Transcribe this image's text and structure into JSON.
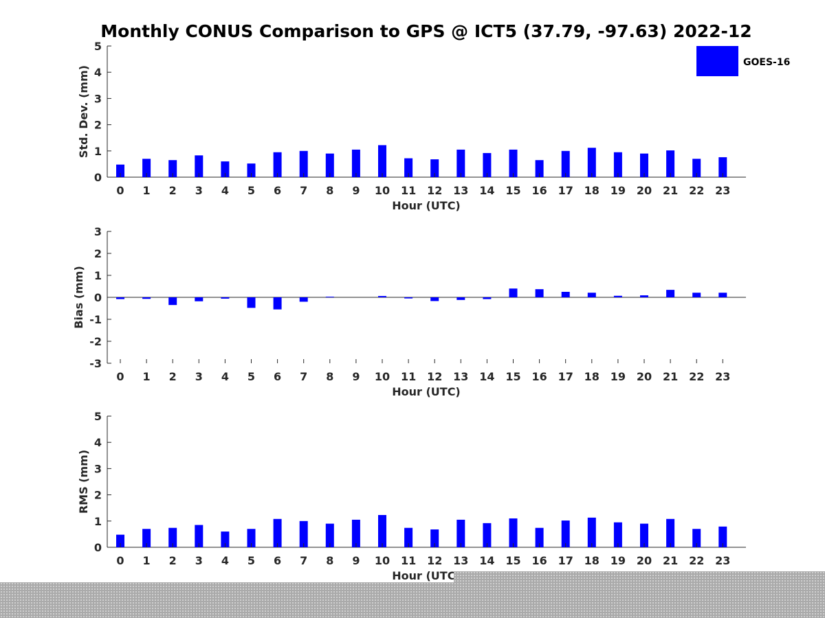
{
  "chart_data": {
    "title": "Monthly CONUS Comparison to GPS @ ICT5 (37.79, -97.63) 2022-12",
    "legend": {
      "entries": [
        "GOES-16"
      ],
      "placement": "top-right"
    },
    "series_color": "#0000ff",
    "panels": [
      {
        "type": "bar",
        "ylabel": "Std. Dev. (mm)",
        "xlabel": "Hour (UTC)",
        "ylim": [
          0,
          5
        ],
        "yticks": [
          "0",
          "1",
          "2",
          "3",
          "4",
          "5"
        ],
        "categories": [
          "0",
          "1",
          "2",
          "3",
          "4",
          "5",
          "6",
          "7",
          "8",
          "9",
          "10",
          "11",
          "12",
          "13",
          "14",
          "15",
          "16",
          "17",
          "18",
          "19",
          "20",
          "21",
          "22",
          "23"
        ],
        "series": [
          {
            "name": "GOES-16",
            "values": [
              0.48,
              0.7,
              0.65,
              0.83,
              0.6,
              0.52,
              0.95,
              1.0,
              0.9,
              1.05,
              1.22,
              0.72,
              0.68,
              1.05,
              0.92,
              1.05,
              0.65,
              1.0,
              1.12,
              0.95,
              0.9,
              1.02,
              0.7,
              0.76
            ]
          }
        ]
      },
      {
        "type": "bar",
        "ylabel": "Bias (mm)",
        "xlabel": "Hour (UTC)",
        "ylim": [
          -3,
          3
        ],
        "yticks": [
          "-3",
          "-2",
          "-1",
          "0",
          "1",
          "2",
          "3"
        ],
        "categories": [
          "0",
          "1",
          "2",
          "3",
          "4",
          "5",
          "6",
          "7",
          "8",
          "9",
          "10",
          "11",
          "12",
          "13",
          "14",
          "15",
          "16",
          "17",
          "18",
          "19",
          "20",
          "21",
          "22",
          "23"
        ],
        "series": [
          {
            "name": "GOES-16",
            "values": [
              -0.08,
              -0.07,
              -0.35,
              -0.18,
              -0.06,
              -0.48,
              -0.55,
              -0.2,
              0.03,
              0.0,
              0.06,
              -0.05,
              -0.17,
              -0.12,
              -0.08,
              0.4,
              0.37,
              0.25,
              0.21,
              0.07,
              0.09,
              0.34,
              0.21,
              0.21
            ]
          }
        ]
      },
      {
        "type": "bar",
        "ylabel": "RMS (mm)",
        "xlabel": "Hour (UTC)",
        "ylim": [
          0,
          5
        ],
        "yticks": [
          "0",
          "1",
          "2",
          "3",
          "4",
          "5"
        ],
        "categories": [
          "0",
          "1",
          "2",
          "3",
          "4",
          "5",
          "6",
          "7",
          "8",
          "9",
          "10",
          "11",
          "12",
          "13",
          "14",
          "15",
          "16",
          "17",
          "18",
          "19",
          "20",
          "21",
          "22",
          "23"
        ],
        "series": [
          {
            "name": "GOES-16",
            "values": [
              0.48,
              0.7,
              0.74,
              0.85,
              0.6,
              0.7,
              1.08,
              1.0,
              0.9,
              1.05,
              1.23,
              0.74,
              0.68,
              1.05,
              0.92,
              1.1,
              0.74,
              1.02,
              1.13,
              0.95,
              0.9,
              1.08,
              0.7,
              0.79
            ]
          }
        ]
      }
    ]
  }
}
